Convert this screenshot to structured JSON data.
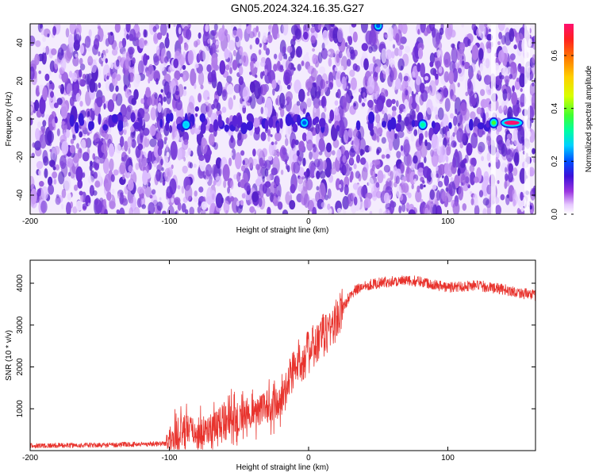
{
  "title": "GN05.2024.324.16.35.G27",
  "chart_data": [
    {
      "type": "heatmap",
      "xlabel": "Height of straight line (km)",
      "ylabel": "Frequency (Hz)",
      "xlim": [
        -200,
        163
      ],
      "ylim": [
        -50,
        50
      ],
      "x_ticks": [
        -200,
        -100,
        0,
        100
      ],
      "y_ticks": [
        -40,
        -20,
        0,
        20,
        40
      ],
      "colorbar": {
        "label": "Normalized spectral amplitude",
        "range": [
          0.0,
          0.72
        ],
        "ticks": [
          "0.0",
          "0.2",
          "0.4",
          "0.6"
        ],
        "tick_values": [
          0.0,
          0.2,
          0.4,
          0.6
        ]
      },
      "highlights": [
        {
          "x": -88,
          "y": -3,
          "amp": 0.3
        },
        {
          "x": -3,
          "y": -2,
          "amp": 0.25
        },
        {
          "x": 82,
          "y": -3,
          "amp": 0.35
        },
        {
          "x": 133,
          "y": -2,
          "amp": 0.4
        },
        {
          "x": 146,
          "y": -2,
          "amp": 0.72
        },
        {
          "x": 50,
          "y": 49,
          "amp": 0.25
        }
      ],
      "grid": false
    },
    {
      "type": "line",
      "xlabel": "Height of straight line (km)",
      "ylabel": "SNR (10 * v/v)",
      "xlim": [
        -200,
        163
      ],
      "ylim": [
        0,
        4550
      ],
      "x_ticks": [
        -200,
        -100,
        0,
        100
      ],
      "y_ticks": [
        1000,
        2000,
        3000,
        4000
      ],
      "color": "#e8332d",
      "profile": {
        "x": [
          -200,
          -150,
          -102,
          -95,
          -88,
          -80,
          -70,
          -60,
          -50,
          -40,
          -30,
          -20,
          -12,
          -5,
          5,
          12,
          20,
          25,
          30,
          40,
          60,
          80,
          100,
          120,
          140,
          163
        ],
        "y": [
          120,
          130,
          170,
          350,
          500,
          420,
          550,
          750,
          800,
          900,
          1050,
          1150,
          1900,
          2200,
          2500,
          2800,
          3100,
          3400,
          3750,
          3950,
          4050,
          4050,
          3900,
          3950,
          3850,
          3700
        ]
      },
      "grid": false
    }
  ]
}
